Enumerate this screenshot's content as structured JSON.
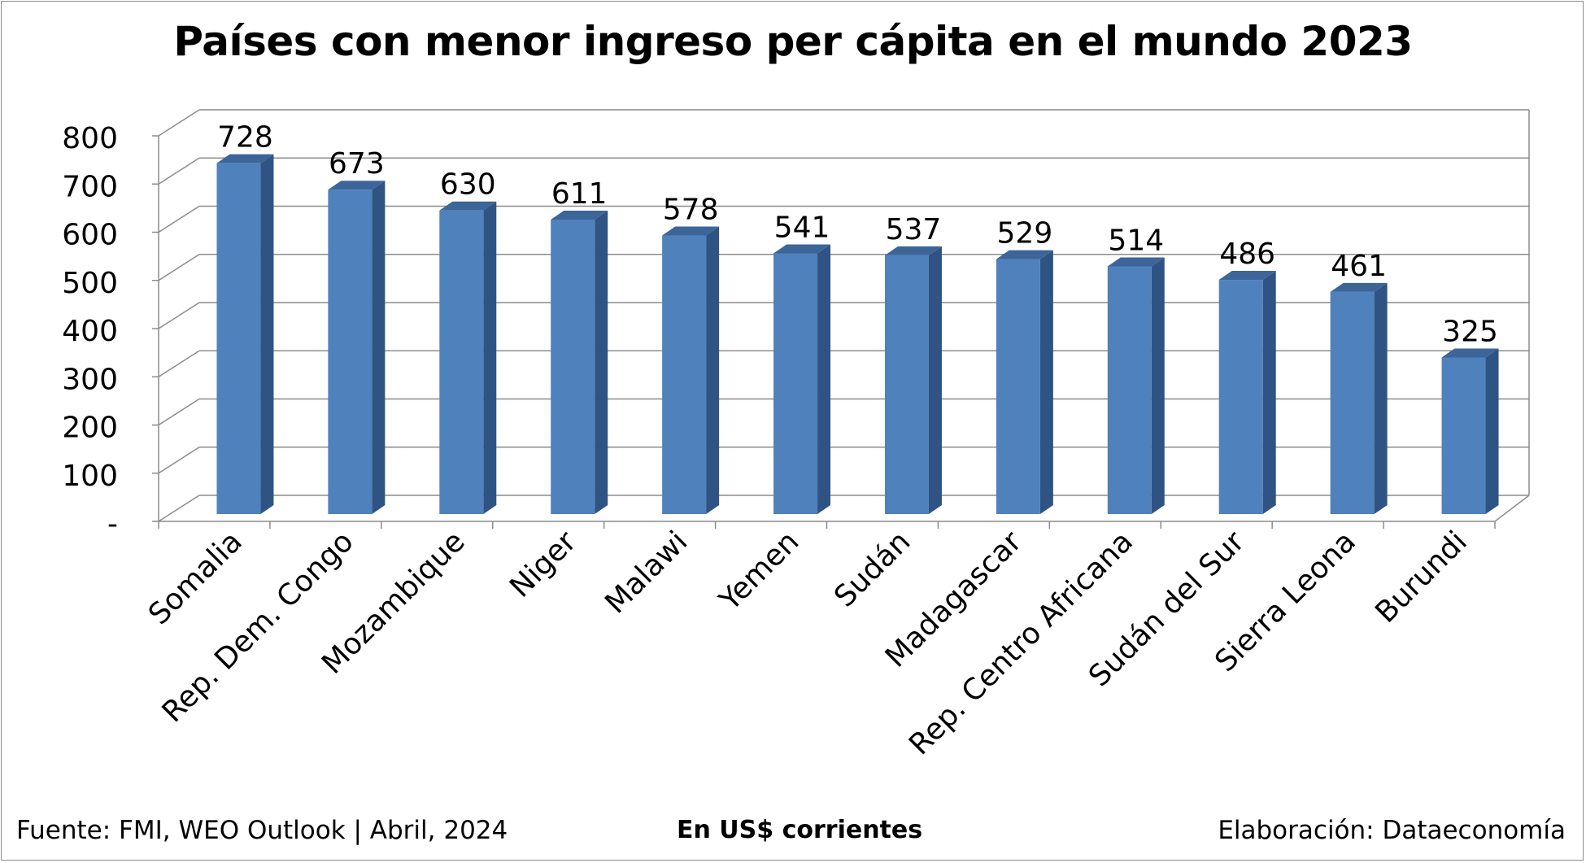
{
  "chart_data": {
    "type": "bar",
    "title": "Países con menor ingreso per cápita en el mundo 2023",
    "categories": [
      "Somalia",
      "Rep. Dem. Congo",
      "Mozambique",
      "Niger",
      "Malawi",
      "Yemen",
      "Sudán",
      "Madagascar",
      "Rep. Centro Africana",
      "Sudán del Sur",
      "Sierra Leona",
      "Burundi"
    ],
    "values": [
      728,
      673,
      630,
      611,
      578,
      541,
      537,
      529,
      514,
      486,
      461,
      325
    ],
    "data_labels": [
      "728",
      "673",
      "630",
      "611",
      "578",
      "541",
      "537",
      "529",
      "514",
      "486",
      "461",
      "325"
    ],
    "y_ticks": [
      0,
      100,
      200,
      300,
      400,
      500,
      600,
      700,
      800
    ],
    "y_tick_labels": [
      "-",
      "100",
      "200",
      "300",
      "400",
      "500",
      "600",
      "700",
      "800"
    ],
    "ylim": [
      0,
      800
    ],
    "xlabel": "",
    "ylabel": "",
    "grid": true,
    "style": "3d-column",
    "bar_color": "#4f81bd",
    "bar_side_color": "#2f5483",
    "bar_top_color": "#3c6599",
    "grid_color": "#8c8c8c"
  },
  "footer": {
    "source": "Fuente: FMI, WEO Outlook | Abril, 2024",
    "units": "En US$ corrientes",
    "credit": "Elaboración: Dataeconomía"
  }
}
